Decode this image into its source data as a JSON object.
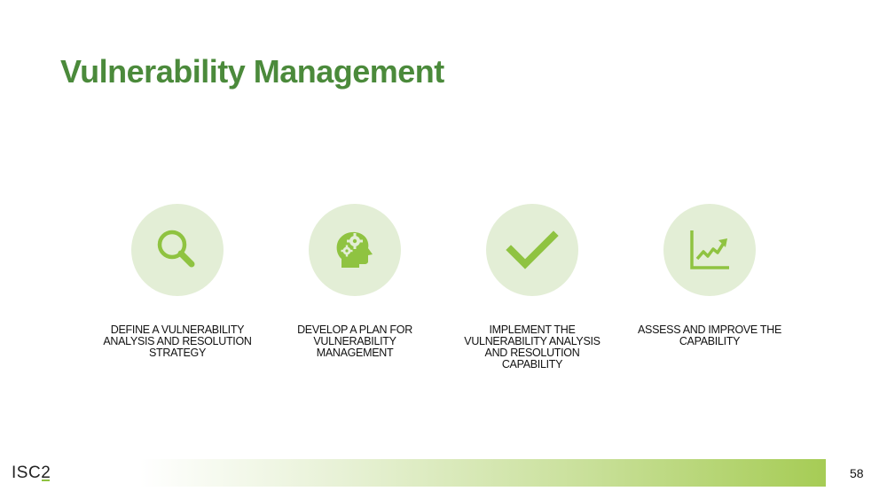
{
  "slide": {
    "title": "Vulnerability Management",
    "page_number": "58"
  },
  "colors": {
    "title": "#4b8a3b",
    "icon": "#8fc341",
    "circle": "#e3eed6"
  },
  "steps": [
    {
      "icon": "magnifying-glass-icon",
      "label": "DEFINE A VULNERABILITY ANALYSIS AND RESOLUTION STRATEGY"
    },
    {
      "icon": "head-gears-icon",
      "label": "DEVELOP A PLAN FOR VULNERABILITY MANAGEMENT"
    },
    {
      "icon": "checkmark-icon",
      "label": "IMPLEMENT THE VULNERABILITY ANALYSIS AND RESOLUTION CAPABILITY"
    },
    {
      "icon": "trend-chart-icon",
      "label": "ASSESS AND IMPROVE THE CAPABILITY"
    }
  ],
  "footer": {
    "logo_text": "ISC",
    "logo_suffix": "2"
  }
}
